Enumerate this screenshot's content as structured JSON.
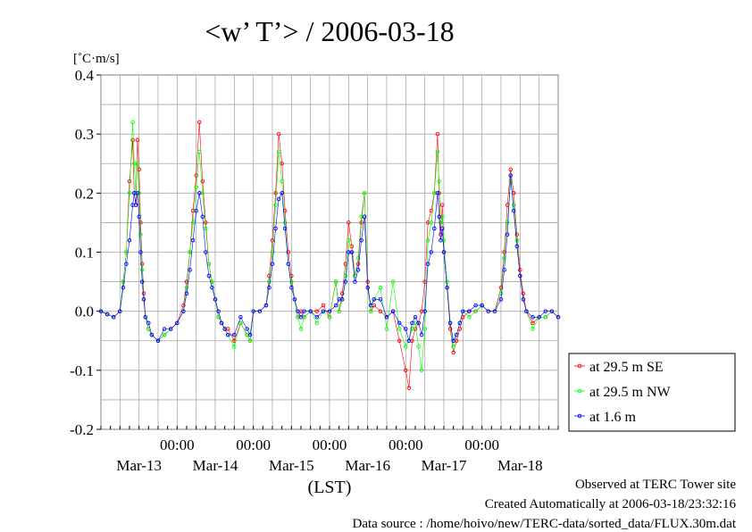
{
  "chart_data": {
    "type": "scatter",
    "title": "<w’ T’> / 2006-03-18",
    "ylabel": "[˚C·m/s]",
    "xlabel": "(LST)",
    "ylim": [
      -0.2,
      0.4
    ],
    "xlim": [
      0,
      144
    ],
    "yticks": [
      -0.2,
      -0.1,
      0.0,
      0.1,
      0.2,
      0.3,
      0.4
    ],
    "ytick_labels": [
      "-0.2",
      "-0.1",
      "0.0",
      "0.1",
      "0.2",
      "0.3",
      "0.4"
    ],
    "x_time_ticks": [
      {
        "x": 24,
        "label": "00:00"
      },
      {
        "x": 48,
        "label": "00:00"
      },
      {
        "x": 72,
        "label": "00:00"
      },
      {
        "x": 96,
        "label": "00:00"
      },
      {
        "x": 120,
        "label": "00:00"
      }
    ],
    "x_date_labels": [
      {
        "x": 12,
        "label": "Mar-13"
      },
      {
        "x": 36,
        "label": "Mar-14"
      },
      {
        "x": 60,
        "label": "Mar-15"
      },
      {
        "x": 84,
        "label": "Mar-16"
      },
      {
        "x": 108,
        "label": "Mar-17"
      },
      {
        "x": 132,
        "label": "Mar-18"
      }
    ],
    "x_units": "hours since 2006-03-12 12:00 LST",
    "grid": true,
    "legend_position": "right-bottom",
    "series": [
      {
        "name": "at 29.5 m SE",
        "color": "#ff0000",
        "x": [
          0,
          2,
          4,
          6,
          7,
          8,
          9,
          10,
          10.5,
          11,
          11.5,
          12,
          12.5,
          13,
          13.5,
          14,
          15,
          16,
          18,
          20,
          22,
          24,
          26,
          27,
          28,
          29,
          30,
          31,
          32,
          33,
          34,
          35,
          36,
          37,
          38,
          39,
          40,
          42,
          44,
          46,
          47,
          48,
          50,
          52,
          53,
          54,
          55,
          56,
          57,
          58,
          59,
          60,
          61,
          62,
          63,
          64,
          66,
          68,
          70,
          72,
          74,
          75,
          76,
          77,
          78,
          79,
          80,
          81,
          82,
          83,
          84,
          85,
          86,
          88,
          90,
          92,
          94,
          96,
          97,
          98,
          99,
          100,
          101,
          102,
          103,
          104,
          105,
          106,
          106.5,
          107,
          107.5,
          108,
          109,
          110,
          111,
          112,
          113,
          114,
          116,
          118,
          120,
          122,
          124,
          126,
          127,
          128,
          129,
          130,
          131,
          132,
          133,
          134,
          136,
          138,
          140,
          142,
          144
        ],
        "y": [
          0.0,
          -0.005,
          -0.01,
          0.0,
          0.05,
          0.1,
          0.22,
          0.29,
          0.2,
          0.18,
          0.29,
          0.24,
          0.15,
          0.08,
          0.03,
          -0.01,
          -0.03,
          -0.04,
          -0.05,
          -0.04,
          -0.03,
          -0.02,
          0.01,
          0.05,
          0.1,
          0.17,
          0.23,
          0.32,
          0.22,
          0.15,
          0.08,
          0.05,
          0.02,
          -0.01,
          -0.02,
          -0.03,
          -0.03,
          -0.05,
          -0.02,
          -0.04,
          -0.05,
          0.0,
          0.0,
          0.01,
          0.06,
          0.12,
          0.2,
          0.3,
          0.25,
          0.17,
          0.1,
          0.06,
          0.02,
          -0.01,
          0.0,
          -0.01,
          0.0,
          0.0,
          0.01,
          -0.01,
          0.05,
          0.0,
          0.03,
          0.08,
          0.15,
          0.11,
          0.06,
          0.08,
          0.15,
          0.2,
          0.05,
          0.0,
          0.01,
          0.0,
          -0.01,
          0.0,
          -0.05,
          -0.1,
          -0.13,
          -0.05,
          -0.03,
          -0.02,
          0.0,
          0.05,
          0.15,
          0.17,
          0.2,
          0.3,
          0.2,
          0.13,
          0.18,
          0.1,
          0.04,
          -0.03,
          -0.07,
          -0.05,
          -0.03,
          -0.01,
          0.0,
          0.0,
          0.01,
          0.0,
          0.0,
          0.04,
          0.1,
          0.18,
          0.24,
          0.2,
          0.13,
          0.07,
          0.03,
          0.0,
          -0.02,
          -0.01,
          -0.01,
          0.0,
          -0.01
        ]
      },
      {
        "name": "at 29.5 m NW",
        "color": "#00ff00",
        "x": [
          0,
          2,
          4,
          6,
          7,
          8,
          9,
          10,
          10.5,
          11,
          11.5,
          12,
          12.5,
          13,
          13.5,
          14,
          15,
          16,
          18,
          20,
          22,
          24,
          26,
          27,
          28,
          29,
          30,
          31,
          32,
          33,
          34,
          35,
          36,
          37,
          38,
          39,
          40,
          42,
          44,
          46,
          47,
          48,
          50,
          52,
          53,
          54,
          55,
          56,
          57,
          58,
          59,
          60,
          61,
          62,
          63,
          64,
          66,
          68,
          70,
          72,
          74,
          75,
          76,
          77,
          78,
          79,
          80,
          81,
          82,
          83,
          84,
          85,
          86,
          88,
          90,
          92,
          94,
          96,
          97,
          98,
          99,
          100,
          101,
          102,
          103,
          104,
          105,
          106,
          106.5,
          107,
          107.5,
          108,
          109,
          110,
          111,
          112,
          113,
          114,
          116,
          118,
          120,
          122,
          124,
          126,
          127,
          128,
          129,
          130,
          131,
          132,
          133,
          134,
          136,
          138,
          140,
          142,
          144
        ],
        "y": [
          0.0,
          -0.005,
          -0.01,
          0.0,
          0.05,
          0.1,
          0.2,
          0.32,
          0.25,
          0.2,
          0.25,
          0.2,
          0.13,
          0.07,
          0.02,
          -0.01,
          -0.03,
          -0.04,
          -0.05,
          -0.04,
          -0.03,
          -0.02,
          0.0,
          0.04,
          0.1,
          0.15,
          0.21,
          0.27,
          0.2,
          0.14,
          0.08,
          0.05,
          0.02,
          -0.01,
          -0.02,
          -0.03,
          -0.04,
          -0.06,
          -0.02,
          -0.04,
          -0.05,
          0.0,
          0.0,
          0.01,
          0.05,
          0.1,
          0.18,
          0.27,
          0.22,
          0.15,
          0.08,
          0.05,
          0.02,
          -0.01,
          -0.03,
          -0.01,
          0.0,
          -0.02,
          0.0,
          -0.01,
          0.05,
          0.0,
          0.02,
          0.06,
          0.12,
          0.1,
          0.06,
          0.09,
          0.16,
          0.2,
          0.04,
          0.0,
          0.02,
          0.04,
          -0.03,
          0.05,
          -0.03,
          -0.06,
          -0.05,
          -0.03,
          -0.02,
          -0.06,
          -0.1,
          -0.03,
          0.12,
          0.15,
          0.2,
          0.27,
          0.22,
          0.15,
          0.16,
          0.12,
          0.05,
          -0.02,
          -0.06,
          -0.04,
          -0.02,
          0.0,
          -0.01,
          0.0,
          0.01,
          0.0,
          0.0,
          0.03,
          0.09,
          0.15,
          0.22,
          0.18,
          0.12,
          0.06,
          0.02,
          0.0,
          -0.03,
          -0.01,
          -0.01,
          0.0,
          -0.01
        ]
      },
      {
        "name": "at 1.6 m",
        "color": "#0000ff",
        "x": [
          0,
          2,
          4,
          6,
          7,
          8,
          9,
          10,
          10.5,
          11,
          11.5,
          12,
          12.5,
          13,
          13.5,
          14,
          15,
          16,
          18,
          20,
          22,
          24,
          26,
          27,
          28,
          29,
          30,
          31,
          32,
          33,
          34,
          35,
          36,
          37,
          38,
          39,
          40,
          42,
          44,
          46,
          47,
          48,
          50,
          52,
          53,
          54,
          55,
          56,
          57,
          58,
          59,
          60,
          61,
          62,
          63,
          64,
          66,
          68,
          70,
          72,
          74,
          75,
          76,
          77,
          78,
          79,
          80,
          81,
          82,
          83,
          84,
          85,
          86,
          88,
          90,
          92,
          94,
          96,
          97,
          98,
          99,
          100,
          101,
          102,
          103,
          104,
          105,
          106,
          106.5,
          107,
          107.5,
          108,
          109,
          110,
          111,
          112,
          113,
          114,
          116,
          118,
          120,
          122,
          124,
          126,
          127,
          128,
          129,
          130,
          131,
          132,
          133,
          134,
          136,
          138,
          140,
          142,
          144
        ],
        "y": [
          0.0,
          -0.005,
          -0.01,
          0.0,
          0.04,
          0.08,
          0.12,
          0.18,
          0.2,
          0.18,
          0.2,
          0.16,
          0.1,
          0.05,
          0.02,
          -0.01,
          -0.02,
          -0.04,
          -0.05,
          -0.03,
          -0.03,
          -0.02,
          0.0,
          0.03,
          0.07,
          0.12,
          0.17,
          0.2,
          0.16,
          0.1,
          0.06,
          0.04,
          0.02,
          0.0,
          -0.02,
          -0.03,
          -0.04,
          -0.04,
          -0.01,
          -0.03,
          -0.04,
          0.0,
          0.0,
          0.01,
          0.04,
          0.08,
          0.14,
          0.19,
          0.2,
          0.14,
          0.08,
          0.04,
          0.02,
          0.0,
          -0.01,
          0.0,
          0.0,
          -0.01,
          0.0,
          0.0,
          0.01,
          0.02,
          0.02,
          0.05,
          0.1,
          0.1,
          0.05,
          0.07,
          0.12,
          0.16,
          0.04,
          0.01,
          0.02,
          0.02,
          -0.01,
          0.0,
          -0.02,
          -0.03,
          -0.05,
          -0.02,
          -0.01,
          -0.02,
          -0.04,
          0.0,
          0.08,
          0.1,
          0.14,
          0.2,
          0.16,
          0.12,
          0.14,
          0.1,
          0.04,
          -0.02,
          -0.05,
          -0.04,
          -0.02,
          0.0,
          0.0,
          0.01,
          0.01,
          0.0,
          0.0,
          0.02,
          0.07,
          0.13,
          0.23,
          0.17,
          0.11,
          0.06,
          0.02,
          0.0,
          -0.01,
          -0.01,
          0.0,
          0.0,
          -0.01
        ]
      }
    ],
    "legend_entries": [
      "at 29.5 m SE",
      "at 29.5 m NW",
      "at 1.6 m"
    ]
  },
  "footer": {
    "site": "Observed at TERC Tower site",
    "created": "Created Automatically at 2006-03-18/23:32:16",
    "source": "Data source : /home/hoivo/new/TERC-data/sorted_data/FLUX.30m.dat"
  }
}
